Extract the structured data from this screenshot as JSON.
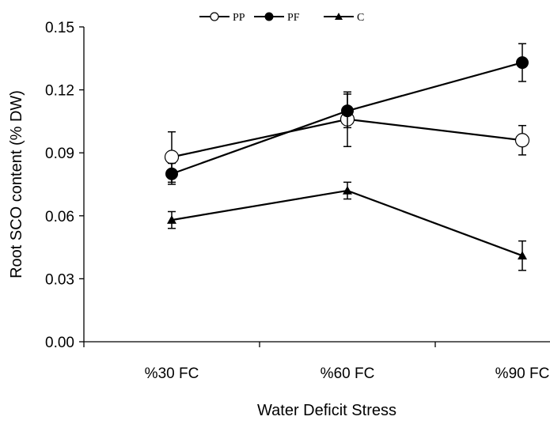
{
  "chart_data": {
    "type": "line",
    "categories": [
      "%30 FC",
      "%60 FC",
      "%90 FC"
    ],
    "xlabel": "Water Deficit Stress",
    "ylabel": "Root SCO content (% DW)",
    "ylim": [
      0,
      0.15
    ],
    "yticks": [
      "0.00",
      "0.03",
      "0.06",
      "0.09",
      "0.12",
      "0.15"
    ],
    "ytick_values": [
      0,
      0.03,
      0.06,
      0.09,
      0.12,
      0.15
    ],
    "grid": false,
    "legend_position": "top-center",
    "series": [
      {
        "name": "PP",
        "marker": "open-circle",
        "color": "#000000",
        "values": [
          0.088,
          0.106,
          0.096
        ],
        "errors": [
          0.012,
          0.013,
          0.007
        ]
      },
      {
        "name": "PF",
        "marker": "filled-circle",
        "color": "#000000",
        "values": [
          0.08,
          0.11,
          0.133
        ],
        "errors": [
          0.005,
          0.008,
          0.009
        ]
      },
      {
        "name": "C",
        "marker": "filled-triangle",
        "color": "#000000",
        "values": [
          0.058,
          0.072,
          0.041
        ],
        "errors": [
          0.004,
          0.004,
          0.007
        ]
      }
    ]
  }
}
